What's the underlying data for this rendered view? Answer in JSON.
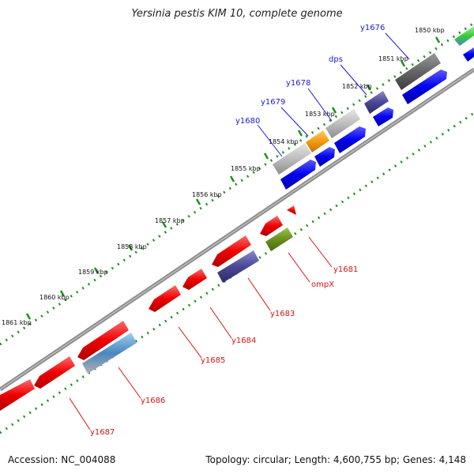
{
  "header": {
    "title": "Yersinia pestis KIM 10, complete genome"
  },
  "footer": {
    "accession": "Accession: NC_004088",
    "summary": "Topology: circular; Length: 4,600,755 bp; Genes: 4,148"
  },
  "colors": {
    "forward_label": "#1a1ad6",
    "reverse_label": "#d41414",
    "ruler": "#1f8f1f",
    "backbone": "#8a8a8a"
  },
  "ticks": [
    "1850 kbp",
    "1851 kbp",
    "1852 kbp",
    "1853 kbp",
    "1854 kbp",
    "1855 kbp",
    "1856 kbp",
    "1857 kbp",
    "1858 kbp",
    "1859 kbp",
    "1860 kbp",
    "1861 kbp"
  ],
  "forward_genes": [
    "y1676",
    "dps",
    "y1678",
    "y1679",
    "y1680"
  ],
  "reverse_genes": [
    "y1681",
    "ompX",
    "y1683",
    "y1684",
    "y1685",
    "y1686",
    "y1687"
  ]
}
